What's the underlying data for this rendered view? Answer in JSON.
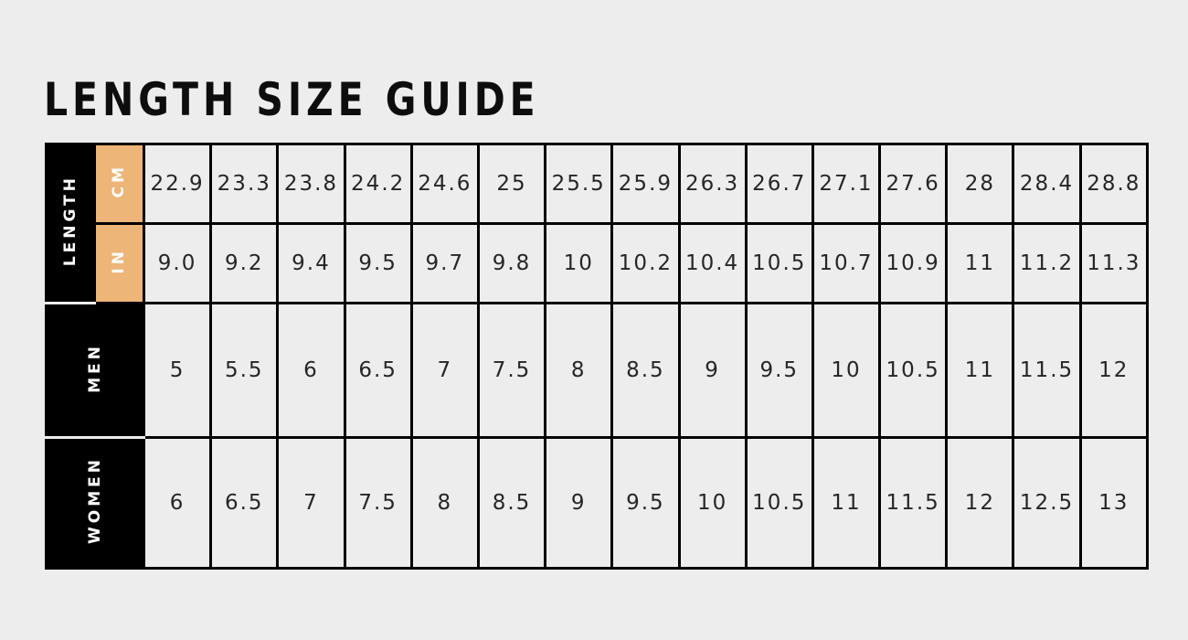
{
  "title": "LENGTH SIZE GUIDE",
  "colors": {
    "background": "#ededed",
    "accent_tan": "#edb577",
    "label_black": "#000000",
    "border": "#000000",
    "value_text": "#262626",
    "label_text": "#ffffff"
  },
  "chart_data": {
    "type": "table",
    "title": "LENGTH SIZE GUIDE",
    "row_group_label": "LENGTH",
    "columns_count": 15,
    "rows": [
      {
        "label": "CM",
        "values": [
          "22.9",
          "23.3",
          "23.8",
          "24.2",
          "24.6",
          "25",
          "25.5",
          "25.9",
          "26.3",
          "26.7",
          "27.1",
          "27.6",
          "28",
          "28.4",
          "28.8"
        ]
      },
      {
        "label": "IN",
        "values": [
          "9.0",
          "9.2",
          "9.4",
          "9.5",
          "9.7",
          "9.8",
          "10",
          "10.2",
          "10.4",
          "10.5",
          "10.7",
          "10.9",
          "11",
          "11.2",
          "11.3"
        ]
      },
      {
        "label": "MEN",
        "values": [
          "5",
          "5.5",
          "6",
          "6.5",
          "7",
          "7.5",
          "8",
          "8.5",
          "9",
          "9.5",
          "10",
          "10.5",
          "11",
          "11.5",
          "12"
        ]
      },
      {
        "label": "WOMEN",
        "values": [
          "6",
          "6.5",
          "7",
          "7.5",
          "8",
          "8.5",
          "9",
          "9.5",
          "10",
          "10.5",
          "11",
          "11.5",
          "12",
          "12.5",
          "13"
        ]
      }
    ],
    "layout": {
      "grid": "on",
      "unit_header_columns_highlighted": true
    }
  }
}
